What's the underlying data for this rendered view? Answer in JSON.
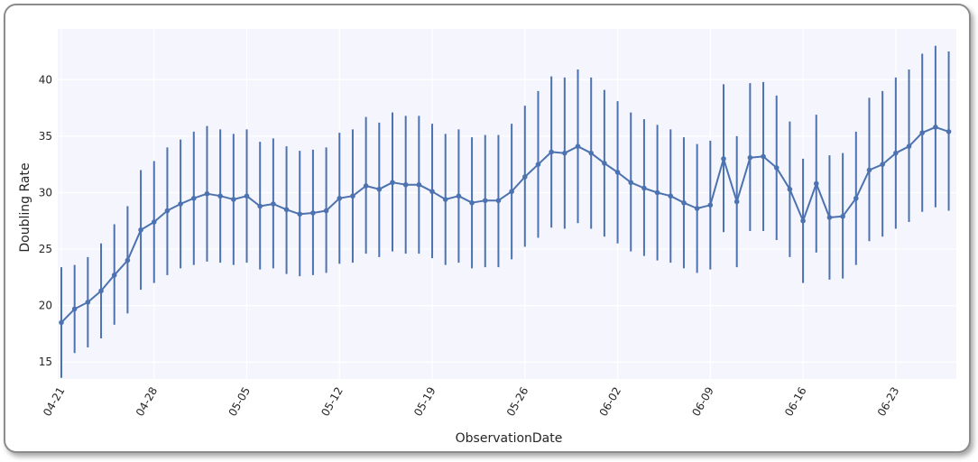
{
  "chart_data": {
    "type": "line",
    "xlabel": "ObservationDate",
    "ylabel": "Doubling Rate",
    "ylim": [
      13.5,
      44.5
    ],
    "yticks": [
      15,
      20,
      25,
      30,
      35,
      40
    ],
    "grid": true,
    "x_start": "2020-04-21",
    "x_tick_labels": [
      "04-21",
      "04-28",
      "05-05",
      "05-12",
      "05-19",
      "05-26",
      "06-02",
      "06-09",
      "06-16",
      "06-23"
    ],
    "colors": {
      "line": "#4c72b0",
      "plot_background": "#f5f5fd",
      "grid": "#ffffff"
    },
    "series": [
      {
        "x": [
          "04-21",
          "04-22",
          "04-23",
          "04-24",
          "04-25",
          "04-26",
          "04-27",
          "04-28",
          "04-29",
          "04-30",
          "05-01",
          "05-02",
          "05-03",
          "05-04",
          "05-05",
          "05-06",
          "05-07",
          "05-08",
          "05-09",
          "05-10",
          "05-11",
          "05-12",
          "05-13",
          "05-14",
          "05-15",
          "05-16",
          "05-17",
          "05-18",
          "05-19",
          "05-20",
          "05-21",
          "05-22",
          "05-23",
          "05-24",
          "05-25",
          "05-26",
          "05-27",
          "05-28",
          "05-29",
          "05-30",
          "05-31",
          "06-01",
          "06-02",
          "06-03",
          "06-04",
          "06-05",
          "06-06",
          "06-07",
          "06-08",
          "06-09",
          "06-10",
          "06-11",
          "06-12",
          "06-13",
          "06-14",
          "06-15",
          "06-16",
          "06-17",
          "06-18",
          "06-19",
          "06-20",
          "06-21",
          "06-22",
          "06-23",
          "06-24",
          "06-25",
          "06-26",
          "06-27"
        ],
        "values": [
          18.5,
          19.7,
          20.3,
          21.3,
          22.7,
          24.0,
          26.7,
          27.4,
          28.4,
          29.0,
          29.5,
          29.9,
          29.7,
          29.4,
          29.7,
          28.8,
          29.0,
          28.5,
          28.1,
          28.2,
          28.4,
          29.5,
          29.7,
          30.6,
          30.3,
          30.9,
          30.7,
          30.7,
          30.1,
          29.4,
          29.7,
          29.1,
          29.3,
          29.3,
          30.1,
          31.4,
          32.5,
          33.6,
          33.5,
          34.1,
          33.5,
          32.6,
          31.8,
          30.9,
          30.4,
          30.0,
          29.7,
          29.1,
          28.6,
          28.9,
          33.0,
          29.2,
          33.1,
          33.2,
          32.2,
          30.3,
          27.5,
          30.8,
          27.8,
          27.9,
          29.5,
          32.0,
          32.5,
          33.5,
          34.1,
          35.3,
          35.8,
          35.4
        ],
        "lower": [
          13.6,
          15.8,
          16.3,
          17.1,
          18.3,
          19.3,
          21.4,
          22.0,
          22.7,
          23.3,
          23.6,
          23.9,
          23.8,
          23.6,
          23.8,
          23.2,
          23.3,
          22.8,
          22.6,
          22.7,
          22.9,
          23.7,
          23.8,
          24.6,
          24.3,
          24.8,
          24.6,
          24.6,
          24.2,
          23.6,
          23.8,
          23.3,
          23.4,
          23.4,
          24.1,
          25.2,
          26.0,
          26.9,
          26.8,
          27.3,
          26.8,
          26.1,
          25.5,
          24.8,
          24.4,
          24.0,
          23.8,
          23.3,
          22.9,
          23.2,
          26.5,
          23.4,
          26.6,
          26.6,
          25.8,
          24.3,
          22.0,
          24.7,
          22.3,
          22.4,
          23.6,
          25.7,
          26.1,
          26.8,
          27.4,
          28.3,
          28.7,
          28.4
        ],
        "upper": [
          23.4,
          23.6,
          24.3,
          25.5,
          27.2,
          28.8,
          32.0,
          32.8,
          34.0,
          34.7,
          35.4,
          35.9,
          35.6,
          35.2,
          35.6,
          34.5,
          34.8,
          34.1,
          33.7,
          33.8,
          34.0,
          35.3,
          35.6,
          36.7,
          36.2,
          37.1,
          36.8,
          36.8,
          36.1,
          35.2,
          35.6,
          34.9,
          35.1,
          35.1,
          36.1,
          37.7,
          39.0,
          40.3,
          40.2,
          40.9,
          40.2,
          39.1,
          38.1,
          37.1,
          36.5,
          36.0,
          35.6,
          34.9,
          34.3,
          34.6,
          39.6,
          35.0,
          39.7,
          39.8,
          38.6,
          36.3,
          33.0,
          36.9,
          33.3,
          33.5,
          35.4,
          38.4,
          39.0,
          40.2,
          40.9,
          42.3,
          43.0,
          42.5
        ]
      }
    ]
  }
}
